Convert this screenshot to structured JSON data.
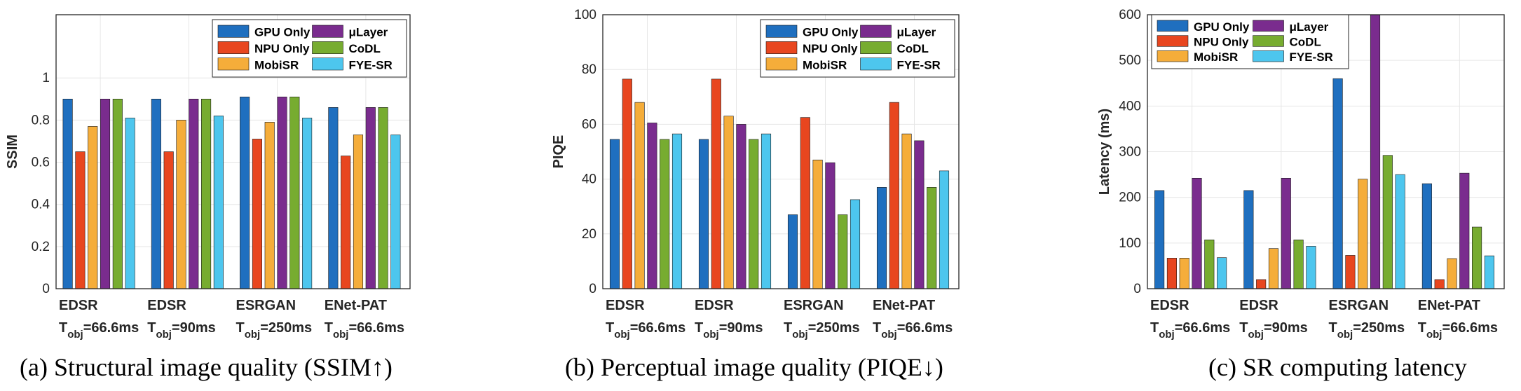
{
  "legend": [
    "GPU Only",
    "μLayer",
    "NPU Only",
    "CoDL",
    "MobiSR",
    "FYE-SR"
  ],
  "chart_data": [
    {
      "type": "bar",
      "caption": "(a)  Structural image quality (SSIM↑)",
      "ylabel": "SSIM",
      "ylim": [
        0,
        1.3
      ],
      "yticks": [
        "0",
        "0.2",
        "0.4",
        "0.6",
        "0.8",
        "1"
      ],
      "categories": [
        {
          "model": "EDSR",
          "t": "T",
          "sub": "obj",
          "val": "=66.6ms"
        },
        {
          "model": "EDSR",
          "t": "T",
          "sub": "obj",
          "val": "=90ms"
        },
        {
          "model": "ESRGAN",
          "t": "T",
          "sub": "obj",
          "val": "=250ms"
        },
        {
          "model": "ENet-PAT",
          "t": "T",
          "sub": "obj",
          "val": "=66.6ms"
        }
      ],
      "series": [
        {
          "name": "GPU Only",
          "color": "#1f6fbf",
          "values": [
            0.9,
            0.9,
            0.91,
            0.86
          ]
        },
        {
          "name": "NPU Only",
          "color": "#e8461f",
          "values": [
            0.65,
            0.65,
            0.71,
            0.63
          ]
        },
        {
          "name": "MobiSR",
          "color": "#f5ad3a",
          "values": [
            0.77,
            0.8,
            0.79,
            0.73
          ]
        },
        {
          "name": "μLayer",
          "color": "#7a2c8e",
          "values": [
            0.9,
            0.9,
            0.91,
            0.86
          ]
        },
        {
          "name": "CoDL",
          "color": "#77ac30",
          "values": [
            0.9,
            0.9,
            0.91,
            0.86
          ]
        },
        {
          "name": "FYE-SR",
          "color": "#4dc6ee",
          "values": [
            0.81,
            0.82,
            0.81,
            0.73
          ]
        }
      ],
      "grid": true,
      "legend_position": "top-right"
    },
    {
      "type": "bar",
      "caption": "(b)  Perceptual image quality (PIQE↓)",
      "ylabel": "PIQE",
      "ylim": [
        0,
        100
      ],
      "yticks": [
        "0",
        "20",
        "40",
        "60",
        "80",
        "100"
      ],
      "categories": [
        {
          "model": "EDSR",
          "t": "T",
          "sub": "obj",
          "val": "=66.6ms"
        },
        {
          "model": "EDSR",
          "t": "T",
          "sub": "obj",
          "val": "=90ms"
        },
        {
          "model": "ESRGAN",
          "t": "T",
          "sub": "obj",
          "val": "=250ms"
        },
        {
          "model": "ENet-PAT",
          "t": "T",
          "sub": "obj",
          "val": "=66.6ms"
        }
      ],
      "series": [
        {
          "name": "GPU Only",
          "color": "#1f6fbf",
          "values": [
            54.5,
            54.5,
            27,
            37
          ]
        },
        {
          "name": "NPU Only",
          "color": "#e8461f",
          "values": [
            76.5,
            76.5,
            62.5,
            68
          ]
        },
        {
          "name": "MobiSR",
          "color": "#f5ad3a",
          "values": [
            68,
            63,
            47,
            56.5
          ]
        },
        {
          "name": "μLayer",
          "color": "#7a2c8e",
          "values": [
            60.5,
            60,
            46,
            54
          ]
        },
        {
          "name": "CoDL",
          "color": "#77ac30",
          "values": [
            54.5,
            54.5,
            27,
            37
          ]
        },
        {
          "name": "FYE-SR",
          "color": "#4dc6ee",
          "values": [
            56.5,
            56.5,
            32.5,
            43
          ]
        }
      ],
      "grid": true,
      "legend_position": "top-right"
    },
    {
      "type": "bar",
      "caption": "(c)  SR computing latency",
      "ylabel": "Latency (ms)",
      "ylim": [
        0,
        600
      ],
      "yticks": [
        "0",
        "100",
        "200",
        "300",
        "400",
        "500",
        "600"
      ],
      "categories": [
        {
          "model": "EDSR",
          "t": "T",
          "sub": "obj",
          "val": "=66.6ms"
        },
        {
          "model": "EDSR",
          "t": "T",
          "sub": "obj",
          "val": "=90ms"
        },
        {
          "model": "ESRGAN",
          "t": "T",
          "sub": "obj",
          "val": "=250ms"
        },
        {
          "model": "ENet-PAT",
          "t": "T",
          "sub": "obj",
          "val": "=66.6ms"
        }
      ],
      "series": [
        {
          "name": "GPU Only",
          "color": "#1f6fbf",
          "values": [
            215,
            215,
            460,
            230
          ]
        },
        {
          "name": "NPU Only",
          "color": "#e8461f",
          "values": [
            67,
            20,
            73,
            20
          ]
        },
        {
          "name": "MobiSR",
          "color": "#f5ad3a",
          "values": [
            67,
            88,
            240,
            66
          ]
        },
        {
          "name": "μLayer",
          "color": "#7a2c8e",
          "values": [
            242,
            242,
            600,
            253
          ]
        },
        {
          "name": "CoDL",
          "color": "#77ac30",
          "values": [
            107,
            107,
            292,
            135
          ]
        },
        {
          "name": "FYE-SR",
          "color": "#4dc6ee",
          "values": [
            68,
            93,
            250,
            72
          ]
        }
      ],
      "grid": true,
      "legend_position": "top-left"
    }
  ]
}
